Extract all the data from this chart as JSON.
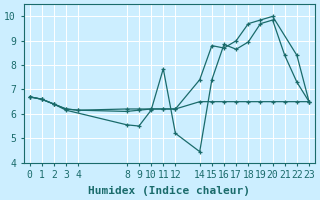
{
  "xlabel": "Humidex (Indice chaleur)",
  "bg_color": "#cceeff",
  "grid_color": "#ffffff",
  "line_color": "#1a6b6b",
  "xlim": [
    -0.5,
    23.5
  ],
  "ylim": [
    4,
    10.5
  ],
  "yticks": [
    4,
    5,
    6,
    7,
    8,
    9,
    10
  ],
  "xtick_positions": [
    0,
    1,
    2,
    3,
    4,
    8,
    9,
    10,
    11,
    12,
    14,
    15,
    16,
    17,
    18,
    19,
    20,
    21,
    22,
    23
  ],
  "xtick_labels": [
    "0",
    "1",
    "2",
    "3",
    "4",
    "8",
    "9",
    "10",
    "11",
    "12",
    "14",
    "15",
    "16",
    "17",
    "18",
    "19",
    "20",
    "21",
    "22",
    "23"
  ],
  "line1_x": [
    0,
    1,
    2,
    3,
    4,
    8,
    9,
    10,
    11,
    12,
    14,
    15,
    16,
    17,
    18,
    19,
    20,
    21,
    22,
    23
  ],
  "line1_y": [
    6.7,
    6.6,
    6.4,
    6.2,
    6.15,
    6.2,
    6.2,
    6.2,
    6.2,
    6.2,
    6.5,
    6.5,
    6.5,
    6.5,
    6.5,
    6.5,
    6.5,
    6.5,
    6.5,
    6.5
  ],
  "line2_x": [
    0,
    1,
    2,
    3,
    4,
    8,
    9,
    10,
    11,
    12,
    14,
    15,
    16,
    17,
    18,
    19,
    20,
    22,
    23
  ],
  "line2_y": [
    6.7,
    6.6,
    6.4,
    6.2,
    6.15,
    6.1,
    6.15,
    6.2,
    6.2,
    6.2,
    7.4,
    8.8,
    8.7,
    9.0,
    9.7,
    9.85,
    10.0,
    8.4,
    6.5
  ],
  "line3_x": [
    0,
    1,
    2,
    3,
    8,
    9,
    10,
    11,
    12,
    14,
    15,
    16,
    17,
    18,
    19,
    20,
    21,
    22,
    23
  ],
  "line3_y": [
    6.7,
    6.6,
    6.4,
    6.15,
    5.55,
    5.5,
    6.15,
    7.85,
    5.2,
    4.45,
    7.4,
    8.85,
    8.65,
    8.95,
    9.7,
    9.85,
    8.4,
    7.3,
    6.5
  ],
  "font_name": "monospace",
  "xlabel_fontsize": 8,
  "tick_fontsize": 7
}
